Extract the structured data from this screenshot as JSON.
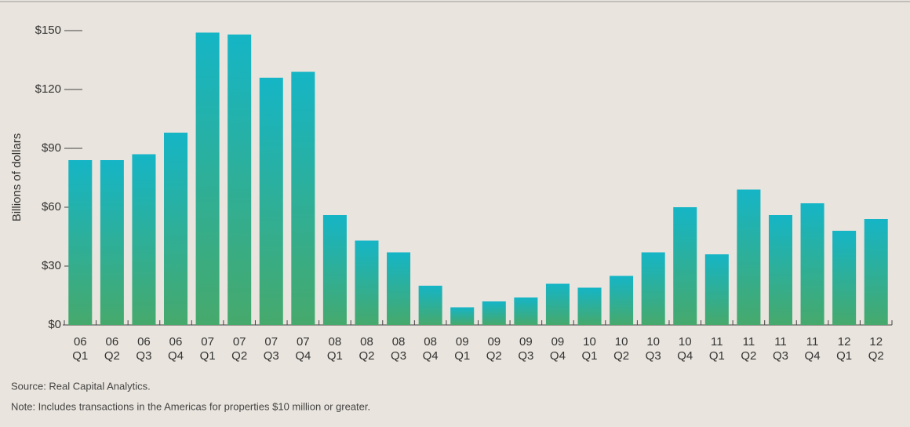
{
  "chart_data": {
    "type": "bar",
    "y_label": "Billions of dollars",
    "categories": [
      [
        "06",
        "Q1"
      ],
      [
        "06",
        "Q2"
      ],
      [
        "06",
        "Q3"
      ],
      [
        "06",
        "Q4"
      ],
      [
        "07",
        "Q1"
      ],
      [
        "07",
        "Q2"
      ],
      [
        "07",
        "Q3"
      ],
      [
        "07",
        "Q4"
      ],
      [
        "08",
        "Q1"
      ],
      [
        "08",
        "Q2"
      ],
      [
        "08",
        "Q3"
      ],
      [
        "08",
        "Q4"
      ],
      [
        "09",
        "Q1"
      ],
      [
        "09",
        "Q2"
      ],
      [
        "09",
        "Q3"
      ],
      [
        "09",
        "Q4"
      ],
      [
        "10",
        "Q1"
      ],
      [
        "10",
        "Q2"
      ],
      [
        "10",
        "Q3"
      ],
      [
        "10",
        "Q4"
      ],
      [
        "11",
        "Q1"
      ],
      [
        "11",
        "Q2"
      ],
      [
        "11",
        "Q3"
      ],
      [
        "11",
        "Q4"
      ],
      [
        "12",
        "Q1"
      ],
      [
        "12",
        "Q2"
      ]
    ],
    "values": [
      84,
      84,
      87,
      98,
      149,
      148,
      126,
      129,
      56,
      43,
      37,
      20,
      9,
      12,
      14,
      21,
      19,
      25,
      37,
      60,
      36,
      69,
      56,
      62,
      48,
      54
    ],
    "color": {
      "top": "#15b5c6",
      "bottom": "#46a96c"
    },
    "ylim": [
      0,
      150
    ],
    "yticks": [
      {
        "value": 0,
        "label": "$0"
      },
      {
        "value": 30,
        "label": "$30"
      },
      {
        "value": 60,
        "label": "$60"
      },
      {
        "value": 90,
        "label": "$90"
      },
      {
        "value": 120,
        "label": "$120"
      },
      {
        "value": 150,
        "label": "$150"
      }
    ],
    "source": "Source: Real Capital Analytics.",
    "note": "Note: Includes transactions in the Americas for properties $10 million or greater."
  }
}
